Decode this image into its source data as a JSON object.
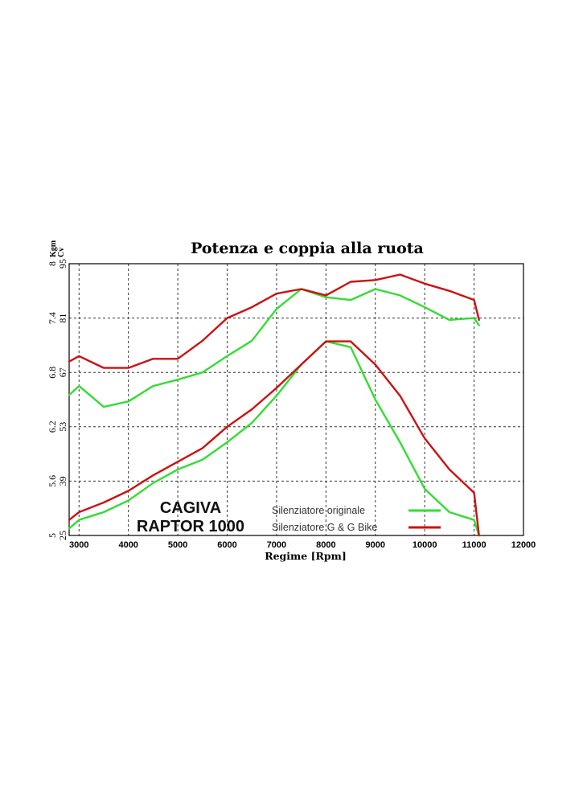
{
  "title": "Potenza e coppia alla ruota",
  "brand_line1": "CAGIVA",
  "brand_line2": "RAPTOR 1000",
  "legend": [
    {
      "label": "Silenziatore originale",
      "color": "#33dd33"
    },
    {
      "label": "Silenziatore G & G Bike",
      "color": "#cc1111"
    }
  ],
  "chart_data": {
    "type": "line",
    "title": "Potenza e coppia alla ruota",
    "xlabel": "Regime [Rpm]",
    "xlim": [
      2800,
      12000
    ],
    "x_ticks": [
      3000,
      4000,
      5000,
      6000,
      7000,
      8000,
      9000,
      10000,
      11000,
      12000
    ],
    "y_axes": [
      {
        "unit": "Kgm",
        "range": [
          5,
          8
        ],
        "ticks": [
          "5",
          "5.6",
          "6.2",
          "6.8",
          "7.4",
          "8"
        ]
      },
      {
        "unit": "Cv",
        "range": [
          25,
          95
        ],
        "ticks": [
          "25",
          "39",
          "53",
          "67",
          "81",
          "95"
        ]
      }
    ],
    "grid": true,
    "series": [
      {
        "name": "Silenziatore originale",
        "measure": "power",
        "axis": "Cv",
        "color": "#33dd33",
        "x": [
          2800,
          3000,
          3500,
          4000,
          4500,
          5000,
          5500,
          6000,
          6500,
          7000,
          7500,
          8000,
          8500,
          9000,
          9500,
          10000,
          10500,
          11000,
          11100
        ],
        "y": [
          26.8,
          29,
          31,
          34,
          38.5,
          42,
          44.5,
          49,
          54,
          61,
          69,
          75,
          73.5,
          60,
          49,
          37,
          31,
          29,
          25
        ]
      },
      {
        "name": "Silenziatore G & G Bike",
        "measure": "power",
        "axis": "Cv",
        "color": "#cc1111",
        "x": [
          2800,
          3000,
          3500,
          4000,
          4500,
          5000,
          5500,
          6000,
          6500,
          7000,
          7500,
          8000,
          8500,
          9000,
          9500,
          10000,
          10500,
          11000,
          11100
        ],
        "y": [
          29,
          31,
          33.5,
          36.5,
          40.5,
          44,
          47.5,
          53,
          57.5,
          63,
          69,
          75,
          75,
          69,
          61,
          50,
          42,
          36,
          25
        ]
      },
      {
        "name": "Silenziatore originale",
        "measure": "torque",
        "axis": "Kgm",
        "color": "#33dd33",
        "x": [
          2800,
          3000,
          3500,
          4000,
          4500,
          5000,
          5500,
          6000,
          6500,
          7000,
          7500,
          8000,
          8500,
          9000,
          9500,
          10000,
          10500,
          11000,
          11100
        ],
        "y": [
          6.55,
          6.65,
          6.42,
          6.48,
          6.65,
          6.72,
          6.8,
          6.98,
          7.15,
          7.5,
          7.72,
          7.63,
          7.6,
          7.72,
          7.65,
          7.52,
          7.38,
          7.4,
          7.32
        ]
      },
      {
        "name": "Silenziatore G & G Bike",
        "measure": "torque",
        "axis": "Kgm",
        "color": "#cc1111",
        "x": [
          2800,
          3000,
          3500,
          4000,
          4500,
          5000,
          5500,
          6000,
          6500,
          7000,
          7500,
          8000,
          8500,
          9000,
          9500,
          10000,
          10500,
          11000,
          11100
        ],
        "y": [
          6.92,
          6.98,
          6.85,
          6.85,
          6.95,
          6.95,
          7.15,
          7.4,
          7.52,
          7.67,
          7.72,
          7.65,
          7.8,
          7.82,
          7.88,
          7.78,
          7.7,
          7.6,
          7.38
        ]
      }
    ]
  }
}
